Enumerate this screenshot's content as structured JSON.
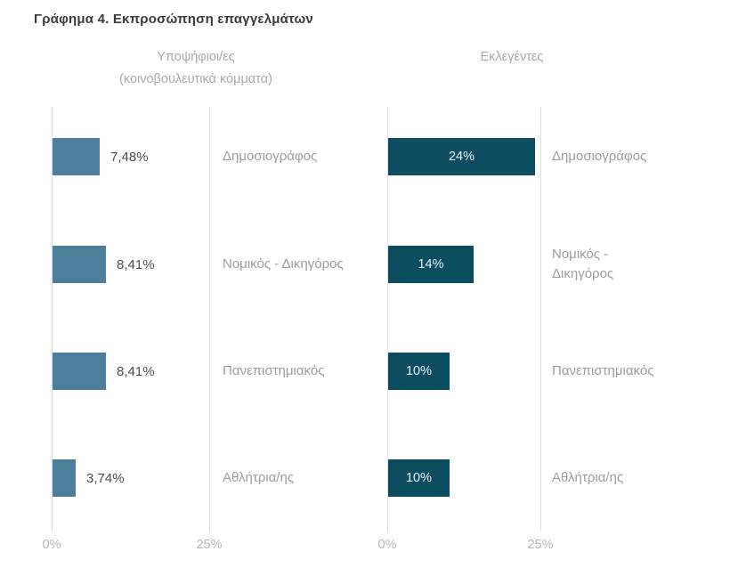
{
  "figure_title": "Γράφημα 4. Εκπροσώπηση επαγγελμάτων",
  "chart_data": [
    {
      "type": "bar",
      "orientation": "horizontal",
      "title": "Υποψήφιοι/ες (κοινοβουλευτικά κόμματα)",
      "categories": [
        "Δημοσιογράφος",
        "Νομικός - Δικηγόρος",
        "Πανεπιστημιακός",
        "Αθλήτρια/ης"
      ],
      "values": [
        7.48,
        8.41,
        8.41,
        3.74
      ],
      "value_labels": [
        "7,48%",
        "8,41%",
        "8,41%",
        "3,74%"
      ],
      "value_label_position": "outside-right",
      "xlim": [
        0,
        25
      ],
      "x_tick_labels": [
        "0%",
        "25%"
      ],
      "grid": "vertical",
      "legend": "none",
      "bar_color": "#4a809b"
    },
    {
      "type": "bar",
      "orientation": "horizontal",
      "title": "Εκλεγέντες",
      "categories": [
        "Δημοσιογράφος",
        "Νομικός - Δικηγόρος",
        "Πανεπιστημιακός",
        "Αθλήτρια/ης"
      ],
      "values": [
        24,
        14,
        10,
        10
      ],
      "value_labels": [
        "24%",
        "14%",
        "10%",
        "10%"
      ],
      "value_label_position": "inside-center",
      "xlim": [
        0,
        25
      ],
      "x_tick_labels": [
        "0%",
        "25%"
      ],
      "grid": "vertical",
      "legend": "none",
      "bar_color": "#0d4d62"
    }
  ],
  "colors": {
    "background": "#ffffff",
    "title_text": "#3a3a3c",
    "header_text": "#a8a8aa",
    "category_text": "#9c9ca0",
    "value_text_outside": "#4d4d4f",
    "value_text_inside": "#eaf4f8",
    "gridline": "#dfdfe1",
    "axis_tick_text": "#b5b5b7"
  }
}
